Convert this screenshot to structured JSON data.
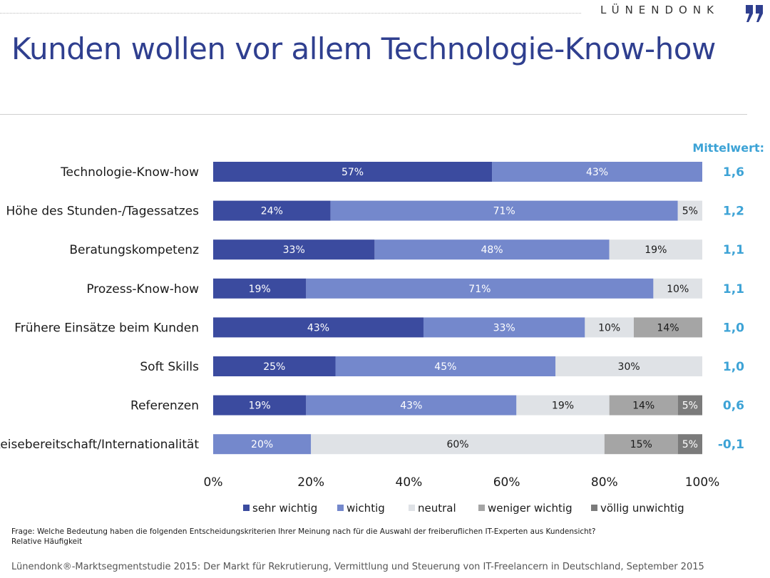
{
  "brand": {
    "name": "LÜNENDONK"
  },
  "title": "Kunden wollen vor allem Technologie-Know-how",
  "chart_data": {
    "type": "bar",
    "orientation": "horizontal",
    "stacked": true,
    "categories": [
      "Technologie-Know-how",
      "Höhe des Stunden-/Tagessatzes",
      "Beratungskompetenz",
      "Prozess-Know-how",
      "Frühere Einsätze beim Kunden",
      "Soft Skills",
      "Referenzen",
      "Reisebereitschaft/Internationalität"
    ],
    "series": [
      {
        "name": "sehr wichtig",
        "color": "#3b4b9f",
        "text_color": "#ffffff",
        "values": [
          57,
          24,
          33,
          19,
          43,
          25,
          19,
          0
        ]
      },
      {
        "name": "wichtig",
        "color": "#7488cc",
        "text_color": "#ffffff",
        "values": [
          43,
          71,
          48,
          71,
          33,
          45,
          43,
          20
        ]
      },
      {
        "name": "neutral",
        "color": "#dfe2e6",
        "text_color": "#1a1a1a",
        "values": [
          0,
          5,
          19,
          10,
          10,
          30,
          19,
          60
        ]
      },
      {
        "name": "weniger wichtig",
        "color": "#a5a5a5",
        "text_color": "#1a1a1a",
        "values": [
          0,
          0,
          0,
          0,
          14,
          0,
          14,
          15
        ]
      },
      {
        "name": "völlig unwichtig",
        "color": "#7b7b7b",
        "text_color": "#ffffff",
        "values": [
          0,
          0,
          0,
          0,
          0,
          0,
          5,
          5
        ]
      }
    ],
    "value_labels": [
      [
        "57%",
        "43%",
        "",
        "",
        ""
      ],
      [
        "24%",
        "71%",
        "5%",
        "",
        ""
      ],
      [
        "33%",
        "48%",
        "19%",
        "",
        ""
      ],
      [
        "19%",
        "71%",
        "10%",
        "",
        ""
      ],
      [
        "43%",
        "33%",
        "10%",
        "14%",
        ""
      ],
      [
        "25%",
        "45%",
        "30%",
        "",
        ""
      ],
      [
        "19%",
        "43%",
        "19%",
        "14%",
        "5%"
      ],
      [
        "",
        "20%",
        "60%",
        "15%",
        "5%"
      ]
    ],
    "xlim": [
      0,
      100
    ],
    "x_ticks": [
      "0%",
      "20%",
      "40%",
      "60%",
      "80%",
      "100%"
    ],
    "mean_header": "Mittelwert:",
    "mean_values": [
      "1,6",
      "1,2",
      "1,1",
      "1,1",
      "1,0",
      "1,0",
      "0,6",
      "-0,1"
    ],
    "legend_position": "bottom",
    "grid": false
  },
  "footnote": {
    "question": "Frage: Welche Bedeutung haben die folgenden Entscheidungskriterien Ihrer Meinung nach für die Auswahl der freiberuflichen IT-Experten aus Kundensicht?",
    "basis": "Relative Häufigkeit"
  },
  "source": "Lünendonk®-Marktsegmentstudie 2015: Der Markt für Rekrutierung, Vermittlung und Steuerung von IT-Freelancern in Deutschland, September 2015",
  "colors": {
    "accent": "#2f3f8f",
    "mean": "#3da3d6"
  }
}
